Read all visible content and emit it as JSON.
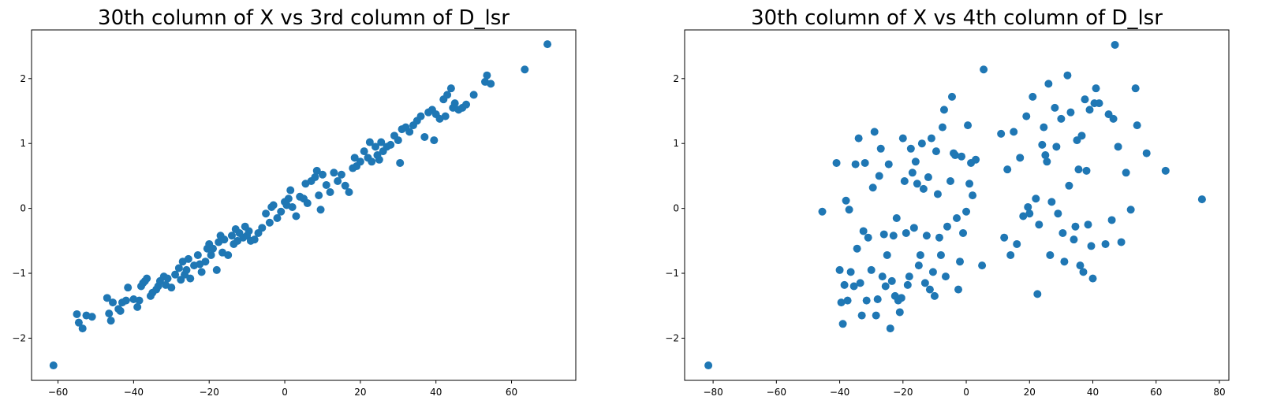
{
  "chart_data": [
    {
      "type": "scatter",
      "title": "30th column of X vs 3rd column of D_lsr",
      "xlabel": "",
      "ylabel": "",
      "xlim": [
        -67,
        77
      ],
      "ylim": [
        -2.65,
        2.75
      ],
      "xticks": [
        "−60",
        "−40",
        "−20",
        "0",
        "20",
        "40",
        "60"
      ],
      "xtick_values": [
        -60,
        -40,
        -20,
        0,
        20,
        40,
        60
      ],
      "yticks": [
        "−2",
        "−1",
        "0",
        "1",
        "2"
      ],
      "ytick_values": [
        -2,
        -1,
        0,
        1,
        2
      ],
      "color": "#1f77b4",
      "grid": false,
      "points": [
        [
          -61.2,
          -2.42
        ],
        [
          -55,
          -1.63
        ],
        [
          -54.5,
          -1.76
        ],
        [
          -53.5,
          -1.85
        ],
        [
          -52.5,
          -1.65
        ],
        [
          -51,
          -1.67
        ],
        [
          -47,
          -1.38
        ],
        [
          -46.5,
          -1.62
        ],
        [
          -46,
          -1.73
        ],
        [
          -45.5,
          -1.45
        ],
        [
          -44,
          -1.55
        ],
        [
          -43.5,
          -1.58
        ],
        [
          -43,
          -1.45
        ],
        [
          -42,
          -1.42
        ],
        [
          -41.5,
          -1.22
        ],
        [
          -40,
          -1.4
        ],
        [
          -39,
          -1.52
        ],
        [
          -38.5,
          -1.42
        ],
        [
          -38,
          -1.2
        ],
        [
          -37.5,
          -1.15
        ],
        [
          -37,
          -1.12
        ],
        [
          -36.5,
          -1.08
        ],
        [
          -35.5,
          -1.35
        ],
        [
          -35,
          -1.3
        ],
        [
          -34,
          -1.25
        ],
        [
          -33.5,
          -1.2
        ],
        [
          -33,
          -1.12
        ],
        [
          -32,
          -1.05
        ],
        [
          -31.5,
          -1.18
        ],
        [
          -31,
          -1.08
        ],
        [
          -30,
          -1.22
        ],
        [
          -29,
          -1.02
        ],
        [
          -28,
          -0.92
        ],
        [
          -27.5,
          -1.1
        ],
        [
          -27,
          -0.82
        ],
        [
          -26.5,
          -1.02
        ],
        [
          -26,
          -0.95
        ],
        [
          -25.5,
          -0.78
        ],
        [
          -25,
          -1.08
        ],
        [
          -24,
          -0.88
        ],
        [
          -23,
          -0.72
        ],
        [
          -22.5,
          -0.86
        ],
        [
          -22,
          -0.98
        ],
        [
          -21,
          -0.82
        ],
        [
          -20.5,
          -0.62
        ],
        [
          -20,
          -0.55
        ],
        [
          -19.5,
          -0.72
        ],
        [
          -19,
          -0.62
        ],
        [
          -18,
          -0.95
        ],
        [
          -17.5,
          -0.52
        ],
        [
          -17,
          -0.42
        ],
        [
          -16.5,
          -0.68
        ],
        [
          -16,
          -0.48
        ],
        [
          -15,
          -0.72
        ],
        [
          -14,
          -0.42
        ],
        [
          -13.5,
          -0.55
        ],
        [
          -13,
          -0.32
        ],
        [
          -12.5,
          -0.5
        ],
        [
          -12,
          -0.38
        ],
        [
          -11,
          -0.45
        ],
        [
          -10.5,
          -0.28
        ],
        [
          -10,
          -0.42
        ],
        [
          -9.5,
          -0.35
        ],
        [
          -9,
          -0.5
        ],
        [
          -8,
          -0.48
        ],
        [
          -7,
          -0.38
        ],
        [
          -6,
          -0.3
        ],
        [
          -5,
          -0.08
        ],
        [
          -4,
          -0.22
        ],
        [
          -3.5,
          0.02
        ],
        [
          -3,
          0.05
        ],
        [
          -2,
          -0.15
        ],
        [
          -1,
          -0.05
        ],
        [
          0,
          0.1
        ],
        [
          0.5,
          0.05
        ],
        [
          1,
          0.15
        ],
        [
          1.5,
          0.28
        ],
        [
          2,
          0.02
        ],
        [
          3,
          -0.12
        ],
        [
          4,
          0.18
        ],
        [
          5,
          0.15
        ],
        [
          5.5,
          0.38
        ],
        [
          6,
          0.08
        ],
        [
          7,
          0.42
        ],
        [
          8,
          0.48
        ],
        [
          8.5,
          0.58
        ],
        [
          9,
          0.2
        ],
        [
          9.5,
          -0.02
        ],
        [
          10,
          0.52
        ],
        [
          11,
          0.36
        ],
        [
          12,
          0.25
        ],
        [
          13,
          0.55
        ],
        [
          14,
          0.42
        ],
        [
          15,
          0.52
        ],
        [
          16,
          0.35
        ],
        [
          17,
          0.25
        ],
        [
          18,
          0.62
        ],
        [
          18.5,
          0.78
        ],
        [
          19,
          0.65
        ],
        [
          20,
          0.72
        ],
        [
          21,
          0.88
        ],
        [
          22,
          0.78
        ],
        [
          22.5,
          1.02
        ],
        [
          23,
          0.72
        ],
        [
          24,
          0.95
        ],
        [
          24.5,
          0.82
        ],
        [
          25,
          0.75
        ],
        [
          25.5,
          1.02
        ],
        [
          26,
          0.88
        ],
        [
          27,
          0.95
        ],
        [
          28,
          0.98
        ],
        [
          29,
          1.12
        ],
        [
          30,
          1.05
        ],
        [
          30.5,
          0.7
        ],
        [
          31,
          1.22
        ],
        [
          32,
          1.25
        ],
        [
          33,
          1.18
        ],
        [
          34,
          1.28
        ],
        [
          35,
          1.35
        ],
        [
          36,
          1.42
        ],
        [
          37,
          1.1
        ],
        [
          38,
          1.48
        ],
        [
          39,
          1.52
        ],
        [
          39.5,
          1.05
        ],
        [
          40,
          1.45
        ],
        [
          41,
          1.38
        ],
        [
          42,
          1.68
        ],
        [
          42.5,
          1.42
        ],
        [
          43,
          1.75
        ],
        [
          44,
          1.85
        ],
        [
          44.5,
          1.55
        ],
        [
          45,
          1.62
        ],
        [
          46,
          1.52
        ],
        [
          47,
          1.55
        ],
        [
          48,
          1.6
        ],
        [
          50,
          1.75
        ],
        [
          53,
          1.95
        ],
        [
          53.5,
          2.05
        ],
        [
          54.5,
          1.92
        ],
        [
          63.5,
          2.14
        ],
        [
          69.5,
          2.53
        ]
      ]
    },
    {
      "type": "scatter",
      "title": "30th column of X vs 4th column of D_lsr",
      "xlabel": "",
      "ylabel": "",
      "xlim": [
        -89,
        83
      ],
      "ylim": [
        -2.65,
        2.75
      ],
      "xticks": [
        "−80",
        "−60",
        "−40",
        "−20",
        "0",
        "20",
        "40",
        "60",
        "80"
      ],
      "xtick_values": [
        -80,
        -60,
        -40,
        -20,
        0,
        20,
        40,
        60,
        80
      ],
      "yticks": [
        "−2",
        "−1",
        "0",
        "1",
        "2"
      ],
      "ytick_values": [
        -2,
        -1,
        0,
        1,
        2
      ],
      "color": "#1f77b4",
      "grid": false,
      "points": [
        [
          -81.5,
          -2.42
        ],
        [
          -45.5,
          -0.05
        ],
        [
          -41,
          0.7
        ],
        [
          -40,
          -0.95
        ],
        [
          -39.5,
          -1.45
        ],
        [
          -39,
          -1.78
        ],
        [
          -38.5,
          -1.18
        ],
        [
          -38,
          0.12
        ],
        [
          -37.5,
          -1.42
        ],
        [
          -37,
          -0.02
        ],
        [
          -36.5,
          -0.98
        ],
        [
          -35.5,
          -1.2
        ],
        [
          -35,
          0.68
        ],
        [
          -34.5,
          -0.62
        ],
        [
          -34,
          1.08
        ],
        [
          -33.5,
          -1.15
        ],
        [
          -33,
          -1.65
        ],
        [
          -32.5,
          -0.35
        ],
        [
          -32,
          0.7
        ],
        [
          -31.5,
          -1.42
        ],
        [
          -31,
          -0.45
        ],
        [
          -30,
          -0.95
        ],
        [
          -29.5,
          0.32
        ],
        [
          -29,
          1.18
        ],
        [
          -28.5,
          -1.65
        ],
        [
          -28,
          -1.4
        ],
        [
          -27.5,
          0.5
        ],
        [
          -27,
          0.92
        ],
        [
          -26.5,
          -1.05
        ],
        [
          -26,
          -0.4
        ],
        [
          -25.5,
          -1.2
        ],
        [
          -25,
          -0.72
        ],
        [
          -24.5,
          0.68
        ],
        [
          -24,
          -1.85
        ],
        [
          -23.5,
          -1.12
        ],
        [
          -23,
          -0.42
        ],
        [
          -22.5,
          -1.35
        ],
        [
          -22,
          -0.15
        ],
        [
          -21.5,
          -1.42
        ],
        [
          -21,
          -1.6
        ],
        [
          -20.5,
          -1.38
        ],
        [
          -20,
          1.08
        ],
        [
          -19.5,
          0.42
        ],
        [
          -19,
          -0.38
        ],
        [
          -18.5,
          -1.18
        ],
        [
          -18,
          -1.05
        ],
        [
          -17.5,
          0.92
        ],
        [
          -17,
          0.55
        ],
        [
          -16.5,
          -0.3
        ],
        [
          -16,
          0.72
        ],
        [
          -15.5,
          0.38
        ],
        [
          -15,
          -0.88
        ],
        [
          -14.5,
          -0.72
        ],
        [
          -14,
          1.0
        ],
        [
          -13.5,
          0.3
        ],
        [
          -13,
          -1.15
        ],
        [
          -12.5,
          -0.42
        ],
        [
          -12,
          0.48
        ],
        [
          -11.5,
          -1.25
        ],
        [
          -11,
          1.08
        ],
        [
          -10.5,
          -0.98
        ],
        [
          -10,
          -1.35
        ],
        [
          -9.5,
          0.88
        ],
        [
          -9,
          0.22
        ],
        [
          -8.5,
          -0.45
        ],
        [
          -8,
          -0.72
        ],
        [
          -7.5,
          1.25
        ],
        [
          -7,
          1.52
        ],
        [
          -6.5,
          -1.05
        ],
        [
          -6,
          -0.28
        ],
        [
          -5,
          0.42
        ],
        [
          -4.5,
          1.72
        ],
        [
          -4,
          0.85
        ],
        [
          -3.5,
          0.82
        ],
        [
          -3,
          -0.15
        ],
        [
          -2.5,
          -1.25
        ],
        [
          -2,
          -0.82
        ],
        [
          -1.5,
          0.8
        ],
        [
          -1,
          -0.38
        ],
        [
          0,
          -0.05
        ],
        [
          0.5,
          1.28
        ],
        [
          1,
          0.38
        ],
        [
          1.5,
          0.7
        ],
        [
          2,
          0.2
        ],
        [
          3,
          0.75
        ],
        [
          5,
          -0.88
        ],
        [
          5.5,
          2.14
        ],
        [
          11,
          1.15
        ],
        [
          12,
          -0.45
        ],
        [
          13,
          0.6
        ],
        [
          14,
          -0.72
        ],
        [
          15,
          1.18
        ],
        [
          16,
          -0.55
        ],
        [
          17,
          0.78
        ],
        [
          18,
          -0.12
        ],
        [
          19,
          1.42
        ],
        [
          19.5,
          0.02
        ],
        [
          20,
          -0.08
        ],
        [
          21,
          1.72
        ],
        [
          22,
          0.15
        ],
        [
          22.5,
          -1.32
        ],
        [
          23,
          -0.25
        ],
        [
          24,
          0.98
        ],
        [
          24.5,
          1.25
        ],
        [
          25,
          0.82
        ],
        [
          25.5,
          0.72
        ],
        [
          26,
          1.92
        ],
        [
          26.5,
          -0.72
        ],
        [
          27,
          0.1
        ],
        [
          28,
          1.55
        ],
        [
          28.5,
          0.95
        ],
        [
          29,
          -0.08
        ],
        [
          30,
          1.38
        ],
        [
          30.5,
          -0.38
        ],
        [
          31,
          -0.82
        ],
        [
          32,
          2.05
        ],
        [
          32.5,
          0.35
        ],
        [
          33,
          1.48
        ],
        [
          34,
          -0.48
        ],
        [
          34.5,
          -0.28
        ],
        [
          35,
          1.05
        ],
        [
          35.5,
          0.6
        ],
        [
          36,
          -0.88
        ],
        [
          36.5,
          1.12
        ],
        [
          37,
          -0.98
        ],
        [
          37.5,
          1.68
        ],
        [
          38,
          0.58
        ],
        [
          38.5,
          -0.25
        ],
        [
          39,
          1.52
        ],
        [
          39.5,
          -0.58
        ],
        [
          40,
          -1.08
        ],
        [
          40.5,
          1.62
        ],
        [
          41,
          1.85
        ],
        [
          42,
          1.62
        ],
        [
          44,
          -0.55
        ],
        [
          45,
          1.45
        ],
        [
          46,
          -0.18
        ],
        [
          46.5,
          1.38
        ],
        [
          47,
          2.52
        ],
        [
          48,
          0.95
        ],
        [
          49,
          -0.52
        ],
        [
          50.5,
          0.55
        ],
        [
          52,
          -0.02
        ],
        [
          53.5,
          1.85
        ],
        [
          54,
          1.28
        ],
        [
          57,
          0.85
        ],
        [
          63,
          0.58
        ],
        [
          74.5,
          0.14
        ]
      ]
    }
  ]
}
